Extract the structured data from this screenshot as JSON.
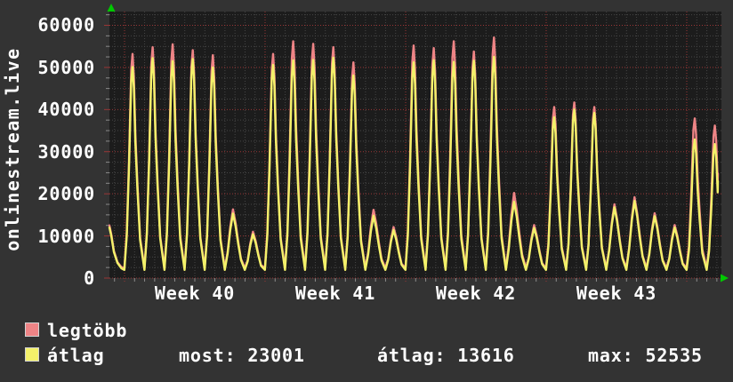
{
  "chart_data": {
    "type": "area",
    "vertical_label": "onlinestream.live",
    "y_ticks": [
      0,
      10000,
      20000,
      30000,
      40000,
      50000,
      60000
    ],
    "y_axis": {
      "min": 0,
      "max": 63500,
      "major_step": 10000,
      "minor_step": 2500
    },
    "x_tick_labels": [
      "Week 40",
      "Week 41",
      "Week 42",
      "Week 43"
    ],
    "x_axis": {
      "unit": "weeks",
      "minor_step_days": 0.5,
      "days_shown": 30.5
    },
    "grid": {
      "on": true,
      "plot_bg": "#1c1c1c",
      "major_color": "#9a3636",
      "minor_color": "#464646",
      "axis_arrow_color": "#00c800"
    },
    "series": [
      {
        "name": "legtöbb",
        "role": "daily maximum",
        "color": "#ee8486"
      },
      {
        "name": "átlag",
        "role": "daily average",
        "color": "#f3f16a"
      }
    ],
    "days": [
      {
        "max": 53200,
        "avg": 50100
      },
      {
        "max": 54800,
        "avg": 52200
      },
      {
        "max": 55500,
        "avg": 51500
      },
      {
        "max": 54100,
        "avg": 52000
      },
      {
        "max": 52900,
        "avg": 50000
      },
      {
        "max": 16300,
        "avg": 15300
      },
      {
        "max": 11000,
        "avg": 10400
      },
      {
        "max": 53200,
        "avg": 50600
      },
      {
        "max": 56200,
        "avg": 51700
      },
      {
        "max": 55600,
        "avg": 51800
      },
      {
        "max": 54800,
        "avg": 52300
      },
      {
        "max": 51200,
        "avg": 48100
      },
      {
        "max": 16200,
        "avg": 14800
      },
      {
        "max": 12100,
        "avg": 11400
      },
      {
        "max": 55200,
        "avg": 51200
      },
      {
        "max": 54600,
        "avg": 51700
      },
      {
        "max": 56200,
        "avg": 51300
      },
      {
        "max": 53800,
        "avg": 51600
      },
      {
        "max": 57100,
        "avg": 52535
      },
      {
        "max": 20200,
        "avg": 18100
      },
      {
        "max": 12600,
        "avg": 11900
      },
      {
        "max": 40600,
        "avg": 38200
      },
      {
        "max": 41700,
        "avg": 40000
      },
      {
        "max": 40600,
        "avg": 39200
      },
      {
        "max": 17500,
        "avg": 16800
      },
      {
        "max": 19200,
        "avg": 18300
      },
      {
        "max": 15400,
        "avg": 14700
      },
      {
        "max": 12600,
        "avg": 12000
      },
      {
        "max": 37900,
        "avg": 32900
      },
      {
        "max": 36200,
        "avg": 31800
      }
    ],
    "lead_in": {
      "x": [
        0,
        2,
        5,
        9,
        13.5
      ],
      "max": [
        12500,
        10500,
        6500,
        3800,
        2600
      ],
      "avg": [
        12000,
        10100,
        6200,
        3600,
        2300
      ]
    },
    "lows": {
      "max": 2400,
      "avg": 1950
    },
    "end": {
      "max": 24800,
      "avg": 23001
    }
  },
  "legend": {
    "items": [
      {
        "label": "legtöbb",
        "color": "#ee8486"
      },
      {
        "label": "átlag",
        "color": "#f3f16a"
      }
    ],
    "stats": [
      {
        "label": "most",
        "value": 23001,
        "text": "most: 23001"
      },
      {
        "label": "átlag",
        "value": 13616,
        "text": "átlag: 13616"
      },
      {
        "label": "max",
        "value": 52535,
        "text": "max: 52535"
      }
    ]
  }
}
